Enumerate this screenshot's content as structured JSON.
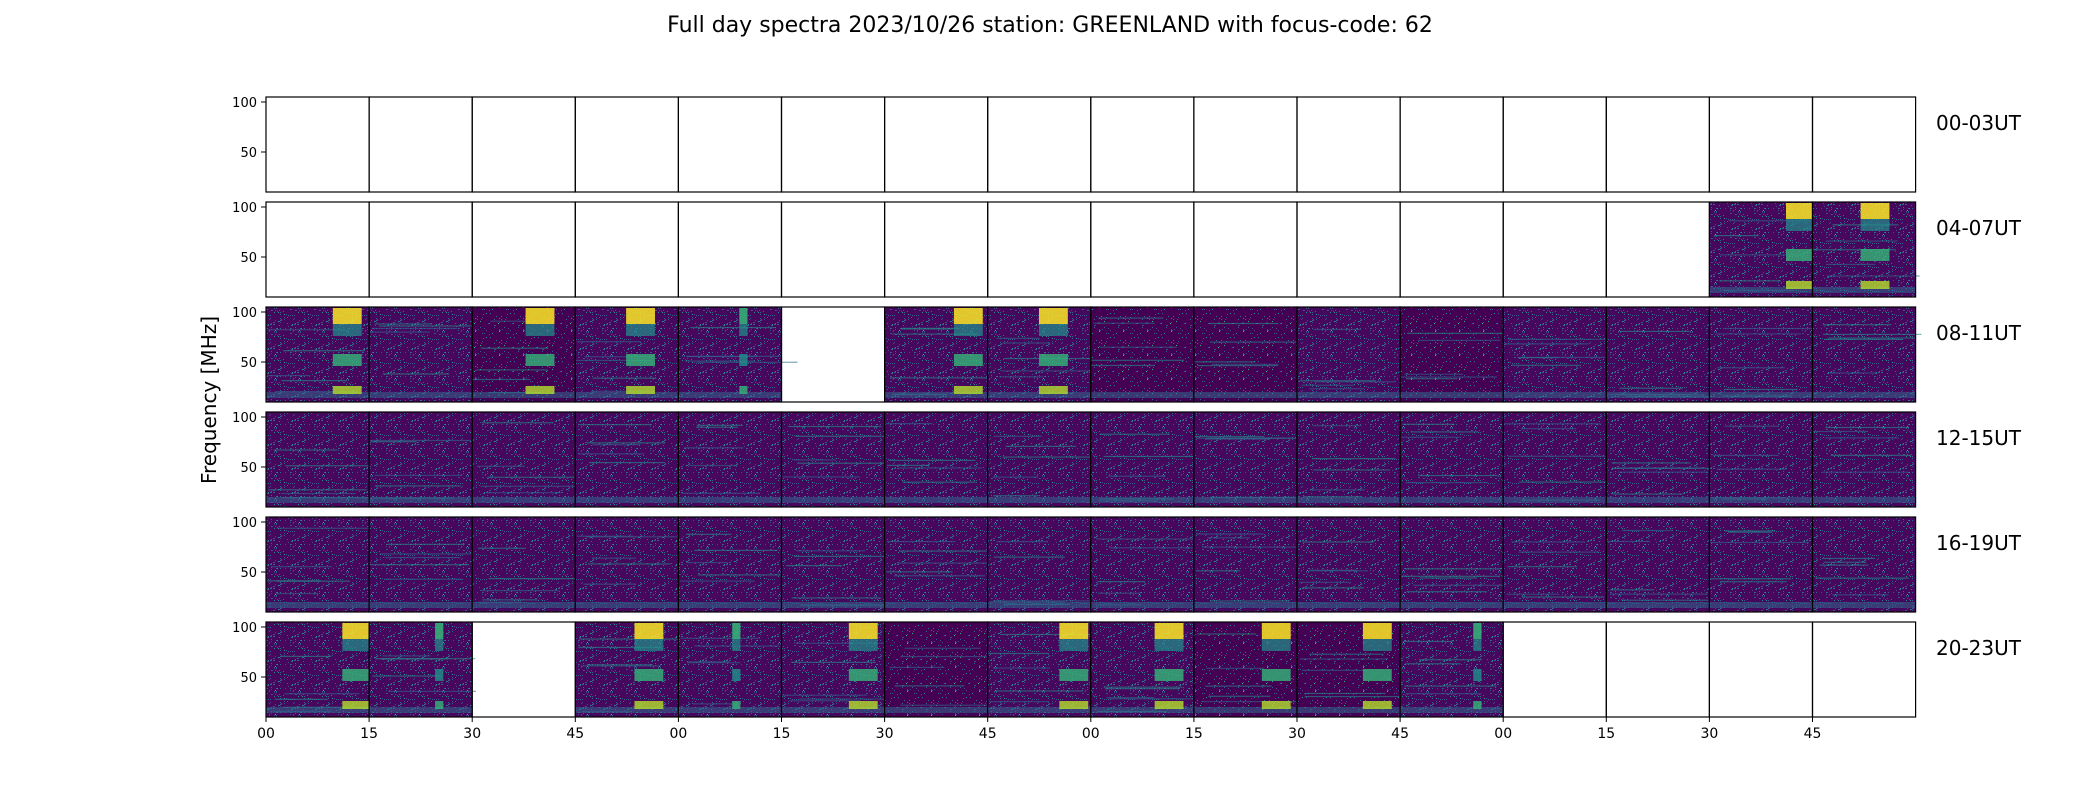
{
  "chart_data": {
    "type": "heatmap",
    "title": "Full day spectra 2023/10/26 station: GREENLAND with focus-code: 62",
    "ylabel": "Frequency [MHz]",
    "xlabel": "",
    "ylim": [
      10,
      105
    ],
    "yticks": [
      50,
      100
    ],
    "xticks": [
      "00",
      "15",
      "30",
      "45",
      "00",
      "15",
      "30",
      "45",
      "00",
      "15",
      "30",
      "45",
      "00",
      "15",
      "30",
      "45"
    ],
    "colormap": [
      "#440154",
      "#31688e",
      "#35b779",
      "#fde725"
    ],
    "rows": [
      {
        "label": "00-03UT",
        "panels": [
          "empty",
          "empty",
          "empty",
          "empty",
          "empty",
          "empty",
          "empty",
          "empty",
          "empty",
          "empty",
          "empty",
          "empty",
          "empty",
          "empty",
          "empty",
          "empty"
        ]
      },
      {
        "label": "04-07UT",
        "panels": [
          "empty",
          "empty",
          "empty",
          "empty",
          "empty",
          "empty",
          "empty",
          "empty",
          "empty",
          "empty",
          "empty",
          "empty",
          "empty",
          "empty",
          "burst",
          "burst"
        ]
      },
      {
        "label": "08-11UT",
        "panels": [
          "burst",
          "noise",
          "burst-dark",
          "burst",
          "burst-faint",
          "empty",
          "burst",
          "burst",
          "noise-dark",
          "noise-dark",
          "noise",
          "noise-dark",
          "noise",
          "noise",
          "noise",
          "noise"
        ]
      },
      {
        "label": "12-15UT",
        "panels": [
          "noise",
          "noise",
          "noise",
          "noise",
          "noise",
          "noise",
          "noise",
          "noise",
          "noise",
          "noise",
          "noise",
          "noise",
          "noise",
          "noise",
          "noise",
          "noise"
        ]
      },
      {
        "label": "16-19UT",
        "panels": [
          "noise",
          "noise",
          "noise",
          "noise",
          "noise",
          "noise",
          "noise",
          "noise",
          "noise",
          "noise",
          "noise",
          "noise",
          "noise",
          "noise",
          "noise",
          "noise"
        ]
      },
      {
        "label": "20-23UT",
        "panels": [
          "burst",
          "burst-faint",
          "empty",
          "burst",
          "burst-faint",
          "burst",
          "noise-dark",
          "burst",
          "burst",
          "burst-dark",
          "burst-dark",
          "burst-faint",
          "empty",
          "empty",
          "empty",
          "empty"
        ]
      }
    ]
  }
}
